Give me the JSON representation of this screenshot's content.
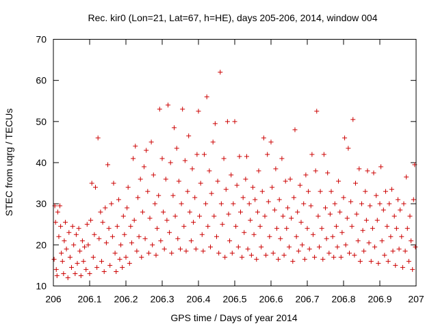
{
  "chart_data": {
    "type": "scatter",
    "title": "Rec. kir0 (Lon=21, Lat=67, h=HE), days 205-206, 2014, window 004",
    "xlabel": "GPS time / Days of year 2014",
    "ylabel": "STEC from uqrg / TECUs",
    "xlim": [
      206,
      207
    ],
    "ylim": [
      10,
      70
    ],
    "xticks": [
      206,
      206.1,
      206.2,
      206.3,
      206.4,
      206.5,
      206.6,
      206.7,
      206.8,
      206.9,
      207
    ],
    "xtick_labels": [
      "206",
      "206.1",
      "206.2",
      "206.3",
      "206.4",
      "206.5",
      "206.6",
      "206.7",
      "206.8",
      "206.9",
      "207"
    ],
    "yticks": [
      10,
      20,
      30,
      40,
      50,
      60,
      70
    ],
    "ytick_labels": [
      "10",
      "20",
      "30",
      "40",
      "50",
      "60",
      "70"
    ],
    "grid": false,
    "marker": "plus",
    "marker_color": "#cc0000",
    "series": [
      {
        "points": [
          [
            206.002,
            16.5
          ],
          [
            206.004,
            29.5
          ],
          [
            206.006,
            25.5
          ],
          [
            206.008,
            14
          ],
          [
            206.01,
            12.5
          ],
          [
            206.012,
            28
          ],
          [
            206.015,
            22
          ],
          [
            206.018,
            29.5
          ],
          [
            206.02,
            24.5
          ],
          [
            206.022,
            18
          ],
          [
            206.025,
            16
          ],
          [
            206.028,
            13
          ],
          [
            206.03,
            21
          ],
          [
            206.033,
            25.5
          ],
          [
            206.036,
            19
          ],
          [
            206.04,
            12
          ],
          [
            206.043,
            23
          ],
          [
            206.046,
            17
          ],
          [
            206.05,
            14.5
          ],
          [
            206.053,
            24.5
          ],
          [
            206.056,
            20
          ],
          [
            206.06,
            13
          ],
          [
            206.063,
            22.5
          ],
          [
            206.066,
            15.5
          ],
          [
            206.07,
            24
          ],
          [
            206.073,
            18.5
          ],
          [
            206.076,
            12.5
          ],
          [
            206.08,
            21
          ],
          [
            206.083,
            16
          ],
          [
            206.086,
            19.5
          ],
          [
            206.09,
            14
          ],
          [
            206.093,
            25
          ],
          [
            206.096,
            20
          ],
          [
            206.1,
            13
          ],
          [
            206.103,
            26
          ],
          [
            206.106,
            35
          ],
          [
            206.11,
            17
          ],
          [
            206.113,
            22.5
          ],
          [
            206.116,
            34
          ],
          [
            206.12,
            14.5
          ],
          [
            206.123,
            46
          ],
          [
            206.126,
            21.5
          ],
          [
            206.13,
            28
          ],
          [
            206.133,
            16
          ],
          [
            206.136,
            25.5
          ],
          [
            206.14,
            13.5
          ],
          [
            206.143,
            29
          ],
          [
            206.146,
            20.5
          ],
          [
            206.15,
            39.5
          ],
          [
            206.153,
            24
          ],
          [
            206.156,
            15
          ],
          [
            206.16,
            30
          ],
          [
            206.163,
            22
          ],
          [
            206.166,
            35
          ],
          [
            206.17,
            18
          ],
          [
            206.173,
            13.5
          ],
          [
            206.176,
            24.5
          ],
          [
            206.18,
            31
          ],
          [
            206.183,
            16.5
          ],
          [
            206.186,
            20
          ],
          [
            206.19,
            14.5
          ],
          [
            206.193,
            27
          ],
          [
            206.196,
            22.5
          ],
          [
            206.2,
            17
          ],
          [
            206.203,
            29
          ],
          [
            206.206,
            34
          ],
          [
            206.21,
            15.5
          ],
          [
            206.213,
            24.5
          ],
          [
            206.216,
            20.5
          ],
          [
            206.22,
            41
          ],
          [
            206.223,
            26
          ],
          [
            206.226,
            44
          ],
          [
            206.23,
            18.5
          ],
          [
            206.233,
            31.5
          ],
          [
            206.236,
            22
          ],
          [
            206.24,
            36
          ],
          [
            206.243,
            17
          ],
          [
            206.246,
            28
          ],
          [
            206.25,
            39
          ],
          [
            206.253,
            21.5
          ],
          [
            206.256,
            43
          ],
          [
            206.26,
            33
          ],
          [
            206.263,
            18
          ],
          [
            206.266,
            26.5
          ],
          [
            206.27,
            45
          ],
          [
            206.273,
            20
          ],
          [
            206.276,
            37
          ],
          [
            206.28,
            30
          ],
          [
            206.283,
            17.5
          ],
          [
            206.286,
            24
          ],
          [
            206.29,
            32
          ],
          [
            206.293,
            53
          ],
          [
            206.296,
            21
          ],
          [
            206.3,
            41
          ],
          [
            206.303,
            28
          ],
          [
            206.306,
            19
          ],
          [
            206.31,
            36
          ],
          [
            206.313,
            26
          ],
          [
            206.316,
            54
          ],
          [
            206.32,
            23
          ],
          [
            206.323,
            40
          ],
          [
            206.326,
            18
          ],
          [
            206.33,
            32
          ],
          [
            206.333,
            48.5
          ],
          [
            206.336,
            27
          ],
          [
            206.34,
            43.5
          ],
          [
            206.343,
            21.5
          ],
          [
            206.346,
            35.5
          ],
          [
            206.35,
            19
          ],
          [
            206.353,
            30
          ],
          [
            206.356,
            53
          ],
          [
            206.36,
            24.5
          ],
          [
            206.363,
            40.5
          ],
          [
            206.366,
            18.5
          ],
          [
            206.37,
            33
          ],
          [
            206.373,
            46.5
          ],
          [
            206.376,
            28
          ],
          [
            206.38,
            21
          ],
          [
            206.383,
            38.5
          ],
          [
            206.386,
            25.5
          ],
          [
            206.39,
            31.5
          ],
          [
            206.393,
            19
          ],
          [
            206.396,
            42
          ],
          [
            206.4,
            52.5
          ],
          [
            206.403,
            27
          ],
          [
            206.406,
            35
          ],
          [
            206.41,
            22.5
          ],
          [
            206.413,
            18.5
          ],
          [
            206.416,
            42
          ],
          [
            206.42,
            30
          ],
          [
            206.423,
            56
          ],
          [
            206.426,
            24.5
          ],
          [
            206.43,
            38
          ],
          [
            206.433,
            19.5
          ],
          [
            206.436,
            32.5
          ],
          [
            206.44,
            45
          ],
          [
            206.443,
            27
          ],
          [
            206.446,
            49.5
          ],
          [
            206.45,
            22
          ],
          [
            206.453,
            35.5
          ],
          [
            206.456,
            18
          ],
          [
            206.46,
            62
          ],
          [
            206.463,
            30
          ],
          [
            206.466,
            25
          ],
          [
            206.47,
            41
          ],
          [
            206.473,
            17
          ],
          [
            206.476,
            33.5
          ],
          [
            206.48,
            50
          ],
          [
            206.483,
            27.5
          ],
          [
            206.486,
            21
          ],
          [
            206.49,
            37
          ],
          [
            206.493,
            18
          ],
          [
            206.496,
            30
          ],
          [
            206.5,
            50
          ],
          [
            206.503,
            24.5
          ],
          [
            206.506,
            34.5
          ],
          [
            206.51,
            19.5
          ],
          [
            206.513,
            41.5
          ],
          [
            206.516,
            28
          ],
          [
            206.52,
            17
          ],
          [
            206.523,
            31.5
          ],
          [
            206.526,
            23
          ],
          [
            206.53,
            36
          ],
          [
            206.533,
            41.5
          ],
          [
            206.536,
            19
          ],
          [
            206.54,
            30
          ],
          [
            206.543,
            26
          ],
          [
            206.546,
            17.5
          ],
          [
            206.55,
            34
          ],
          [
            206.553,
            22.5
          ],
          [
            206.556,
            31
          ],
          [
            206.56,
            16.5
          ],
          [
            206.563,
            28
          ],
          [
            206.566,
            38
          ],
          [
            206.57,
            24.5
          ],
          [
            206.573,
            19.5
          ],
          [
            206.576,
            33
          ],
          [
            206.58,
            46
          ],
          [
            206.583,
            27
          ],
          [
            206.586,
            17.5
          ],
          [
            206.59,
            42
          ],
          [
            206.593,
            30.5
          ],
          [
            206.596,
            22
          ],
          [
            206.6,
            45
          ],
          [
            206.603,
            34
          ],
          [
            206.606,
            18
          ],
          [
            206.61,
            28.5
          ],
          [
            206.613,
            38.5
          ],
          [
            206.616,
            24
          ],
          [
            206.62,
            16.5
          ],
          [
            206.623,
            31
          ],
          [
            206.626,
            21.5
          ],
          [
            206.63,
            41
          ],
          [
            206.633,
            27
          ],
          [
            206.636,
            17.5
          ],
          [
            206.64,
            35.5
          ],
          [
            206.643,
            24
          ],
          [
            206.646,
            29
          ],
          [
            206.65,
            19.5
          ],
          [
            206.653,
            36
          ],
          [
            206.656,
            26.5
          ],
          [
            206.66,
            16
          ],
          [
            206.663,
            31.5
          ],
          [
            206.666,
            48
          ],
          [
            206.67,
            22
          ],
          [
            206.673,
            28
          ],
          [
            206.676,
            18.5
          ],
          [
            206.68,
            34.5
          ],
          [
            206.683,
            25.5
          ],
          [
            206.686,
            20
          ],
          [
            206.69,
            30
          ],
          [
            206.693,
            16.5
          ],
          [
            206.696,
            37
          ],
          [
            206.7,
            24
          ],
          [
            206.703,
            33
          ],
          [
            206.706,
            19
          ],
          [
            206.71,
            29.5
          ],
          [
            206.713,
            42
          ],
          [
            206.716,
            22.5
          ],
          [
            206.72,
            17
          ],
          [
            206.723,
            38
          ],
          [
            206.726,
            52.5
          ],
          [
            206.73,
            27
          ],
          [
            206.733,
            19.5
          ],
          [
            206.736,
            33
          ],
          [
            206.74,
            24
          ],
          [
            206.743,
            16.5
          ],
          [
            206.746,
            42
          ],
          [
            206.75,
            29
          ],
          [
            206.753,
            21.5
          ],
          [
            206.756,
            37.5
          ],
          [
            206.76,
            18
          ],
          [
            206.763,
            27.5
          ],
          [
            206.766,
            33
          ],
          [
            206.77,
            22
          ],
          [
            206.773,
            17
          ],
          [
            206.776,
            30
          ],
          [
            206.78,
            24.5
          ],
          [
            206.783,
            19.5
          ],
          [
            206.786,
            35.5
          ],
          [
            206.79,
            28
          ],
          [
            206.793,
            17
          ],
          [
            206.796,
            23
          ],
          [
            206.8,
            31.5
          ],
          [
            206.803,
            46
          ],
          [
            206.806,
            20
          ],
          [
            206.81,
            26.5
          ],
          [
            206.813,
            43.5
          ],
          [
            206.816,
            18
          ],
          [
            206.82,
            30.5
          ],
          [
            206.823,
            24.5
          ],
          [
            206.826,
            50.5
          ],
          [
            206.83,
            17.5
          ],
          [
            206.833,
            35
          ],
          [
            206.836,
            27.5
          ],
          [
            206.84,
            21
          ],
          [
            206.843,
            38.5
          ],
          [
            206.846,
            16
          ],
          [
            206.85,
            30
          ],
          [
            206.853,
            23.5
          ],
          [
            206.856,
            18.5
          ],
          [
            206.86,
            33
          ],
          [
            206.863,
            26
          ],
          [
            206.866,
            38
          ],
          [
            206.87,
            20.5
          ],
          [
            206.873,
            29.5
          ],
          [
            206.876,
            16
          ],
          [
            206.88,
            24
          ],
          [
            206.883,
            37.5
          ],
          [
            206.886,
            19.5
          ],
          [
            206.89,
            32
          ],
          [
            206.893,
            26
          ],
          [
            206.896,
            15.5
          ],
          [
            206.9,
            30
          ],
          [
            206.903,
            39
          ],
          [
            206.906,
            21
          ],
          [
            206.91,
            28.5
          ],
          [
            206.913,
            17.5
          ],
          [
            206.916,
            33
          ],
          [
            206.92,
            24.5
          ],
          [
            206.923,
            16
          ],
          [
            206.926,
            30
          ],
          [
            206.93,
            22
          ],
          [
            206.933,
            33.5
          ],
          [
            206.936,
            18.5
          ],
          [
            206.94,
            27
          ],
          [
            206.943,
            15
          ],
          [
            206.946,
            24
          ],
          [
            206.95,
            31
          ],
          [
            206.953,
            19
          ],
          [
            206.956,
            28.5
          ],
          [
            206.96,
            22
          ],
          [
            206.963,
            14.5
          ],
          [
            206.966,
            30
          ],
          [
            206.97,
            18.5
          ],
          [
            206.973,
            36.5
          ],
          [
            206.976,
            24
          ],
          [
            206.98,
            16
          ],
          [
            206.983,
            27
          ],
          [
            206.986,
            21
          ],
          [
            206.99,
            14
          ],
          [
            206.993,
            31
          ],
          [
            206.996,
            39.5
          ],
          [
            206.998,
            19.5
          ]
        ]
      }
    ]
  }
}
